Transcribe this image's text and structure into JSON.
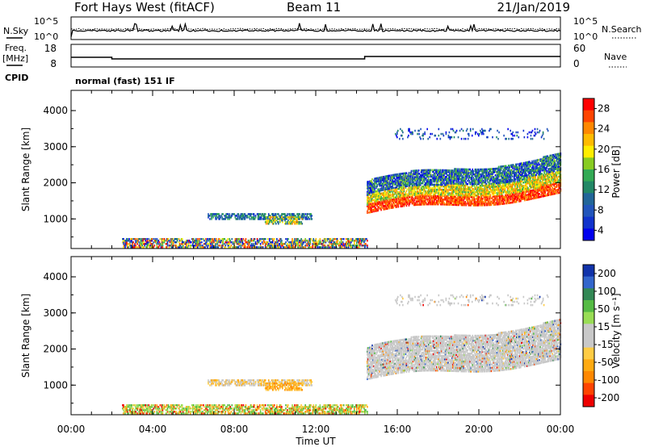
{
  "header": {
    "radar": "Fort Hays West (fitACF)",
    "beam": "Beam 11",
    "date": "21/Jan/2019"
  },
  "noise_panel": {
    "left_label": "N.Sky",
    "left_ticks": [
      "10^5",
      "10^0"
    ],
    "right_label": "N.Search",
    "right_ticks": [
      "10^5",
      "10^0"
    ]
  },
  "freq_panel": {
    "left_label_1": "Freq.",
    "left_label_2": "[MHz]",
    "left_ticks": [
      "18",
      "8"
    ],
    "right_label": "Nave",
    "right_ticks": [
      "60",
      "0"
    ],
    "cpid_label": "CPID",
    "cpid_text": "normal (fast) 151 IF"
  },
  "chart_data": [
    {
      "type": "heatmap",
      "name": "power",
      "xlabel": "",
      "ylabel": "Slant Range [km]",
      "x_range_hours": [
        0,
        24
      ],
      "ylim": [
        180,
        4560
      ],
      "y_ticks": [
        "4000",
        "3000",
        "2000",
        "1000"
      ],
      "colorbar": {
        "label": "Power [dB]",
        "ticks": [
          "28",
          "24",
          "20",
          "16",
          "12",
          "8",
          "4"
        ],
        "colors": [
          "#ff0000",
          "#ff4400",
          "#ff8800",
          "#ffbb00",
          "#ffee00",
          "#88cc22",
          "#33aa55",
          "#228866",
          "#226699",
          "#2255bb",
          "#1133cc",
          "#0000ee"
        ]
      },
      "scatter_bands": [
        {
          "t_start": 6.7,
          "t_end": 11.8,
          "r_low": 980,
          "r_high": 1150,
          "level": "mid-low"
        },
        {
          "t_start": 9.5,
          "t_end": 11.3,
          "r_low": 850,
          "r_high": 1050,
          "level": "mid"
        },
        {
          "t_start": 2.5,
          "t_end": 14.5,
          "r_low": 200,
          "r_high": 450,
          "level": "mixed"
        },
        {
          "t_start": 14.5,
          "t_end": 24.0,
          "r_low": 1100,
          "r_high": 2200,
          "level": "high"
        },
        {
          "t_start": 15.8,
          "t_end": 23.5,
          "r_low": 3200,
          "r_high": 3500,
          "level": "low"
        }
      ]
    },
    {
      "type": "heatmap",
      "name": "velocity",
      "xlabel": "Time UT",
      "ylabel": "Slant Range [km]",
      "x_range_hours": [
        0,
        24
      ],
      "x_ticks": [
        "00:00",
        "04:00",
        "08:00",
        "12:00",
        "16:00",
        "20:00",
        "00:00"
      ],
      "ylim": [
        180,
        4560
      ],
      "y_ticks": [
        "4000",
        "3000",
        "2000",
        "1000"
      ],
      "colorbar": {
        "label": "Velocity [m s⁻¹]",
        "ticks": [
          "200",
          "100",
          "50",
          "15",
          "-15",
          "-50",
          "-100",
          "-200"
        ],
        "colors": [
          "#1133aa",
          "#3366cc",
          "#338855",
          "#55bb44",
          "#99dd55",
          "#c8c8c8",
          "#c8c8c8",
          "#ffcc44",
          "#ffaa11",
          "#ff8800",
          "#ff4400",
          "#ee0000"
        ]
      }
    }
  ]
}
